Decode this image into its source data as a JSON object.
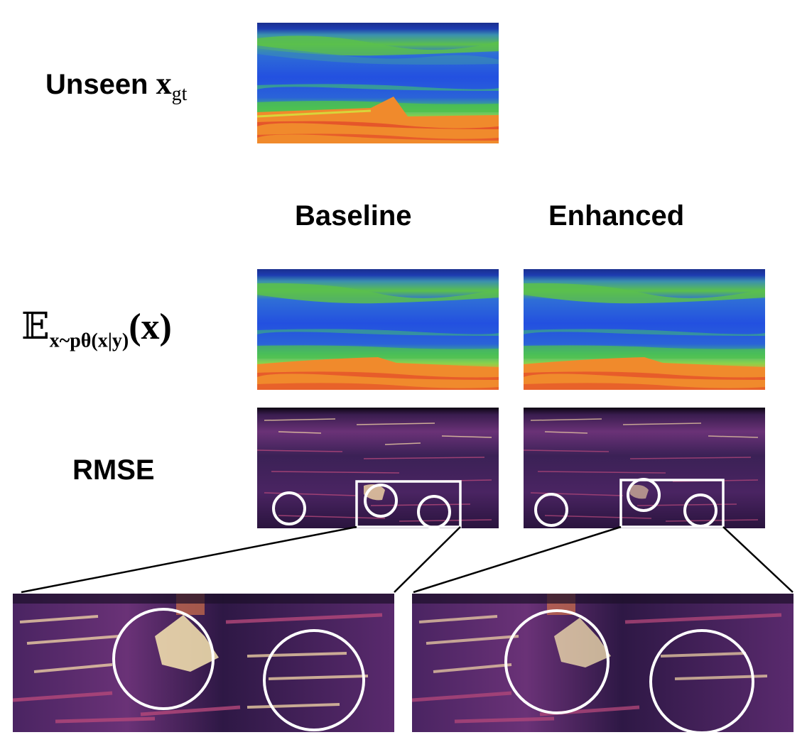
{
  "labels": {
    "unseen_prefix": "Unseen ",
    "unseen_symbol": "x",
    "unseen_subscript": "gt",
    "expectation_operator": "𝔼",
    "expectation_subscript": "x~pθ(x|y)",
    "expectation_argument": "(x)",
    "rmse": "RMSE"
  },
  "columns": {
    "baseline": "Baseline",
    "enhanced": "Enhanced"
  },
  "panels": [
    {
      "id": "ground-truth",
      "kind": "velocity model",
      "colormap": "jet"
    },
    {
      "id": "baseline-mean",
      "kind": "posterior mean",
      "colormap": "jet"
    },
    {
      "id": "enhanced-mean",
      "kind": "posterior mean",
      "colormap": "jet"
    },
    {
      "id": "baseline-rmse",
      "kind": "error map",
      "colormap": "magma"
    },
    {
      "id": "enhanced-rmse",
      "kind": "error map",
      "colormap": "magma"
    },
    {
      "id": "baseline-zoom",
      "kind": "zoomed error map",
      "colormap": "magma"
    },
    {
      "id": "enhanced-zoom",
      "kind": "zoomed error map",
      "colormap": "magma"
    }
  ],
  "colors": {
    "jet_deep": "#1a2f8f",
    "jet_blue": "#2350e0",
    "jet_green": "#4fc24a",
    "jet_yellow": "#d8d53a",
    "jet_orange": "#f08a2c",
    "jet_red": "#e2482a",
    "magma_dark": "#1d0f2a",
    "magma_purple": "#5a2a6e",
    "magma_pink": "#b5487a",
    "magma_light": "#f6d9a8",
    "annotation": "#ffffff",
    "connector": "#000000"
  }
}
